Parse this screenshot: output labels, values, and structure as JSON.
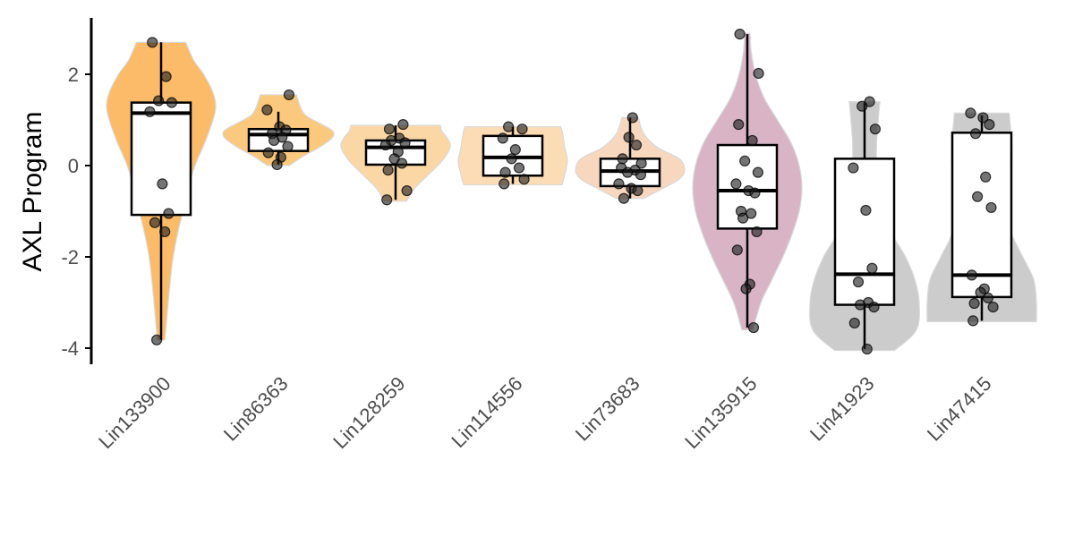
{
  "chart_data": {
    "type": "violin",
    "title": "",
    "xlabel": "",
    "ylabel": "AXL Program",
    "ylim": [
      -4.3,
      3.2
    ],
    "yticks": [
      -4,
      -2,
      0,
      2
    ],
    "ytick_labels": [
      "-4",
      "-2",
      "0",
      "2"
    ],
    "grid": false,
    "legend": "none",
    "categories": [
      "Lin133900",
      "Lin86363",
      "Lin128259",
      "Lin114556",
      "Lin73683",
      "Lin135915",
      "Lin41923",
      "Lin47415"
    ],
    "groups": [
      {
        "name": "Lin133900",
        "color": "#fbbb68",
        "violin_opacity": 1.0,
        "box": {
          "min": -3.82,
          "q1": -1.08,
          "median": 1.15,
          "q3": 1.38,
          "max": 2.7
        },
        "points": [
          2.7,
          1.95,
          1.42,
          1.38,
          1.18,
          -0.4,
          -1.05,
          -1.25,
          -1.45,
          -3.82
        ],
        "density": [
          [
            -3.82,
            0.07
          ],
          [
            -3.4,
            0.1
          ],
          [
            -3.0,
            0.13
          ],
          [
            -2.5,
            0.17
          ],
          [
            -2.0,
            0.22
          ],
          [
            -1.5,
            0.3
          ],
          [
            -1.0,
            0.4
          ],
          [
            -0.5,
            0.5
          ],
          [
            0.0,
            0.62
          ],
          [
            0.5,
            0.8
          ],
          [
            1.0,
            0.95
          ],
          [
            1.3,
            1.0
          ],
          [
            1.6,
            0.95
          ],
          [
            2.0,
            0.78
          ],
          [
            2.3,
            0.6
          ],
          [
            2.7,
            0.45
          ]
        ]
      },
      {
        "name": "Lin86363",
        "color": "#fbc97e",
        "violin_opacity": 1.0,
        "box": {
          "min": 0.02,
          "q1": 0.32,
          "median": 0.68,
          "q3": 0.8,
          "max": 1.18
        },
        "points": [
          1.55,
          1.22,
          0.85,
          0.78,
          0.7,
          0.62,
          0.55,
          0.42,
          0.28,
          0.18,
          0.02
        ],
        "density": [
          [
            0.0,
            0.2
          ],
          [
            0.2,
            0.45
          ],
          [
            0.4,
            0.75
          ],
          [
            0.6,
            0.98
          ],
          [
            0.75,
            1.0
          ],
          [
            0.9,
            0.8
          ],
          [
            1.1,
            0.5
          ],
          [
            1.3,
            0.4
          ],
          [
            1.55,
            0.33
          ]
        ]
      },
      {
        "name": "Lin128259",
        "color": "#fcd7a6",
        "violin_opacity": 1.0,
        "box": {
          "min": -0.75,
          "q1": 0.02,
          "median": 0.4,
          "q3": 0.55,
          "max": 0.88
        },
        "points": [
          0.9,
          0.8,
          0.6,
          0.55,
          0.5,
          0.45,
          0.3,
          0.15,
          0.05,
          -0.1,
          -0.55,
          -0.75
        ],
        "density": [
          [
            -0.78,
            0.2
          ],
          [
            -0.5,
            0.35
          ],
          [
            -0.2,
            0.6
          ],
          [
            0.1,
            0.85
          ],
          [
            0.4,
            1.0
          ],
          [
            0.6,
            0.95
          ],
          [
            0.75,
            0.85
          ],
          [
            0.88,
            0.82
          ]
        ]
      },
      {
        "name": "Lin114556",
        "color": "#fcdcb5",
        "violin_opacity": 1.0,
        "box": {
          "min": -0.4,
          "q1": -0.22,
          "median": 0.18,
          "q3": 0.65,
          "max": 0.85
        },
        "points": [
          0.85,
          0.8,
          0.6,
          0.35,
          0.15,
          -0.05,
          -0.15,
          -0.3,
          -0.4
        ],
        "density": [
          [
            -0.42,
            0.9
          ],
          [
            -0.2,
            0.95
          ],
          [
            0.1,
            1.0
          ],
          [
            0.4,
            0.95
          ],
          [
            0.65,
            0.92
          ],
          [
            0.85,
            0.88
          ]
        ]
      },
      {
        "name": "Lin73683",
        "color": "#f8d7bf",
        "violin_opacity": 1.0,
        "box": {
          "min": -0.72,
          "q1": -0.45,
          "median": -0.12,
          "q3": 0.15,
          "max": 1.05
        },
        "points": [
          1.05,
          0.62,
          0.45,
          0.15,
          0.05,
          -0.05,
          -0.1,
          -0.15,
          -0.2,
          -0.4,
          -0.5,
          -0.55,
          -0.72
        ],
        "density": [
          [
            -0.72,
            0.25
          ],
          [
            -0.5,
            0.6
          ],
          [
            -0.3,
            0.9
          ],
          [
            -0.1,
            1.0
          ],
          [
            0.15,
            0.9
          ],
          [
            0.4,
            0.5
          ],
          [
            0.7,
            0.25
          ],
          [
            1.05,
            0.15
          ]
        ]
      },
      {
        "name": "Lin135915",
        "color": "#d8b4c5",
        "violin_opacity": 1.0,
        "box": {
          "min": -3.55,
          "q1": -1.38,
          "median": -0.55,
          "q3": 0.45,
          "max": 2.88
        },
        "points": [
          2.88,
          2.02,
          0.9,
          0.55,
          0.1,
          -0.15,
          -0.4,
          -0.55,
          -0.6,
          -1.0,
          -1.05,
          -1.15,
          -1.45,
          -1.85,
          -2.6,
          -2.7,
          -3.55
        ],
        "density": [
          [
            -3.6,
            0.1
          ],
          [
            -3.0,
            0.25
          ],
          [
            -2.5,
            0.45
          ],
          [
            -2.0,
            0.65
          ],
          [
            -1.5,
            0.82
          ],
          [
            -1.0,
            0.95
          ],
          [
            -0.5,
            1.0
          ],
          [
            0.0,
            0.95
          ],
          [
            0.5,
            0.8
          ],
          [
            1.0,
            0.55
          ],
          [
            1.5,
            0.3
          ],
          [
            2.0,
            0.15
          ],
          [
            2.5,
            0.07
          ],
          [
            2.9,
            0.05
          ]
        ]
      },
      {
        "name": "Lin41923",
        "color": "#cccccc",
        "violin_opacity": 1.0,
        "box": {
          "min": -4.02,
          "q1": -3.05,
          "median": -2.38,
          "q3": 0.15,
          "max": 1.38
        },
        "points": [
          1.4,
          1.3,
          0.8,
          -0.05,
          -0.98,
          -2.25,
          -2.55,
          -3.0,
          -3.05,
          -3.1,
          -3.45,
          -4.02
        ],
        "density": [
          [
            -4.05,
            0.55
          ],
          [
            -3.6,
            0.95
          ],
          [
            -3.0,
            1.0
          ],
          [
            -2.5,
            0.92
          ],
          [
            -2.0,
            0.75
          ],
          [
            -1.5,
            0.5
          ],
          [
            -1.0,
            0.33
          ],
          [
            -0.5,
            0.25
          ],
          [
            0.0,
            0.22
          ],
          [
            0.5,
            0.22
          ],
          [
            1.0,
            0.25
          ],
          [
            1.4,
            0.28
          ]
        ]
      },
      {
        "name": "Lin47415",
        "color": "#cccccc",
        "violin_opacity": 1.0,
        "box": {
          "min": -3.4,
          "q1": -2.88,
          "median": -2.4,
          "q3": 0.72,
          "max": 1.1
        },
        "points": [
          1.15,
          1.05,
          0.9,
          0.7,
          -0.25,
          -0.68,
          -0.92,
          -2.4,
          -2.7,
          -2.78,
          -2.9,
          -3.02,
          -3.1,
          -3.4
        ],
        "density": [
          [
            -3.42,
            1.0
          ],
          [
            -3.0,
            1.0
          ],
          [
            -2.5,
            0.95
          ],
          [
            -2.0,
            0.75
          ],
          [
            -1.5,
            0.55
          ],
          [
            -1.0,
            0.5
          ],
          [
            -0.5,
            0.52
          ],
          [
            0.0,
            0.55
          ],
          [
            0.5,
            0.55
          ],
          [
            0.9,
            0.52
          ],
          [
            1.15,
            0.5
          ]
        ]
      }
    ]
  }
}
